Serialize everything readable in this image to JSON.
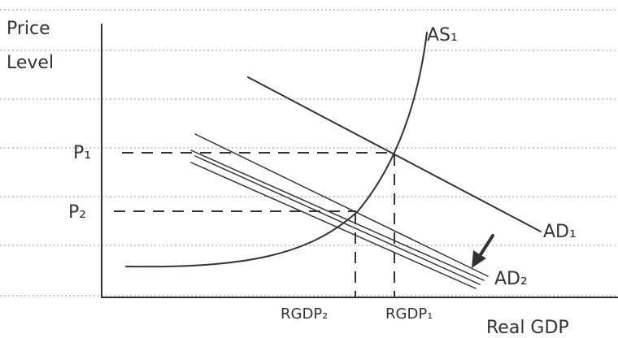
{
  "axes": {
    "y_label_line1": "Price",
    "y_label_line2": "Level",
    "x_label": "Real GDP"
  },
  "curves": {
    "as": "AS₁",
    "ad1": "AD₁",
    "ad2": "AD₂"
  },
  "prices": {
    "p1": "P₁",
    "p2": "P₂"
  },
  "outputs": {
    "rgdp2": "RGDP₂",
    "rgdp1": "RGDP₁"
  }
}
